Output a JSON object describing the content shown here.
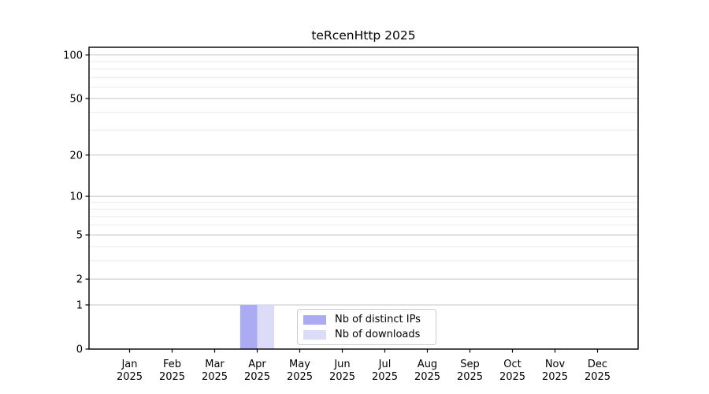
{
  "chart_data": {
    "type": "bar",
    "title": "teRcenHttp 2025",
    "x": {
      "months": [
        "Jan",
        "Feb",
        "Mar",
        "Apr",
        "May",
        "Jun",
        "Jul",
        "Aug",
        "Sep",
        "Oct",
        "Nov",
        "Dec"
      ],
      "year": "2025"
    },
    "categories": [
      "Jan 2025",
      "Feb 2025",
      "Mar 2025",
      "Apr 2025",
      "May 2025",
      "Jun 2025",
      "Jul 2025",
      "Aug 2025",
      "Sep 2025",
      "Oct 2025",
      "Nov 2025",
      "Dec 2025"
    ],
    "series": [
      {
        "name": "Nb of distinct IPs",
        "color": "#ababf3",
        "values": [
          0,
          0,
          0,
          1,
          0,
          0,
          0,
          0,
          0,
          0,
          0,
          0
        ]
      },
      {
        "name": "Nb of downloads",
        "color": "#dcdcf8",
        "values": [
          0,
          0,
          0,
          1,
          0,
          0,
          0,
          0,
          0,
          0,
          0,
          0
        ]
      }
    ],
    "xlabel": "",
    "ylabel": "",
    "yscale": "log1p",
    "ylim": [
      0,
      113
    ],
    "yticks": [
      0,
      1,
      2,
      5,
      10,
      20,
      50,
      100
    ],
    "minor_yticks": [
      3,
      4,
      6,
      7,
      8,
      9,
      30,
      40,
      60,
      70,
      80,
      90
    ],
    "grid": "horizontal",
    "legend_position": "inside-bottom-center",
    "colors": {
      "axis": "#000000",
      "tick_label": "#000000",
      "grid_major": "#c3c3c3",
      "grid_minor": "#ebebeb",
      "legend_border": "#cccccc",
      "background": "#ffffff"
    }
  }
}
